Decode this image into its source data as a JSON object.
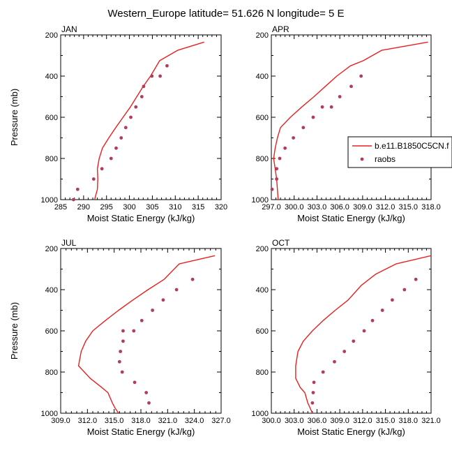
{
  "title": "Western_Europe  latitude= 51.626 N longitude= 5 E",
  "colors": {
    "model_line": "#e8201e",
    "obs_marker": "#b03c60"
  },
  "legend": {
    "placement": "right of APR panel",
    "entries": [
      "b.e11.B1850C5CN.f",
      "raobs"
    ]
  },
  "chart_data": [
    {
      "type": "line",
      "panel": "JAN",
      "xlabel": "Moist Static Energy (kJ/kg)",
      "ylabel": "Pressure (mb)",
      "xlim": [
        285,
        320
      ],
      "ylim": [
        1000,
        200
      ],
      "y_reversed": true,
      "xticks": [
        "285",
        "290",
        "295",
        "300",
        "305",
        "310",
        "315",
        "320"
      ],
      "yticks": [
        "200",
        "400",
        "600",
        "800",
        "1000"
      ],
      "series": [
        {
          "name": "b.e11.B1850C5CN.f",
          "style": "line",
          "x": [
            292.4,
            292.7,
            293.0,
            293.1,
            293.0,
            293.4,
            294.1,
            295.5,
            297.0,
            298.6,
            300.2,
            301.6,
            303.0,
            304.6,
            306.6,
            310.5,
            316.3
          ],
          "y": [
            1000,
            975,
            950,
            900,
            850,
            800,
            750,
            700,
            650,
            600,
            550,
            500,
            450,
            400,
            325,
            275,
            235
          ]
        },
        {
          "name": "raobs",
          "style": "markers",
          "x": [
            287.8,
            288.7,
            292.2,
            294.0,
            296.0,
            297.1,
            298.2,
            299.2,
            300.3,
            301.4,
            302.7,
            303.1,
            304.9,
            306.7,
            308.2
          ],
          "y": [
            1000,
            950,
            900,
            850,
            800,
            750,
            700,
            650,
            600,
            550,
            500,
            450,
            400,
            400,
            350
          ]
        }
      ]
    },
    {
      "type": "line",
      "panel": "APR",
      "xlabel": "Moist Static Energy (kJ/kg)",
      "ylabel": "",
      "xlim": [
        297,
        318
      ],
      "ylim": [
        1000,
        200
      ],
      "y_reversed": true,
      "xticks": [
        "297.0",
        "300.0",
        "303.0",
        "306.0",
        "309.0",
        "312.0",
        "315.0",
        "318.0"
      ],
      "yticks": [
        "200",
        "400",
        "600",
        "800",
        "1000"
      ],
      "series": [
        {
          "name": "b.e11.B1850C5CN.f",
          "style": "line",
          "x": [
            297.9,
            297.8,
            297.7,
            297.5,
            297.3,
            297.5,
            297.8,
            298.2,
            299.5,
            301.0,
            302.6,
            304.1,
            305.6,
            307.4,
            309.1,
            311.5,
            317.6
          ],
          "y": [
            1000,
            950,
            900,
            850,
            800,
            750,
            700,
            650,
            600,
            550,
            500,
            450,
            400,
            350,
            325,
            275,
            235
          ]
        },
        {
          "name": "raobs",
          "style": "markers",
          "x": [
            297.1,
            297.7,
            297.7,
            298.1,
            298.8,
            299.9,
            301.2,
            302.5,
            303.7,
            304.9,
            306.0,
            307.5,
            308.8
          ],
          "y": [
            950,
            900,
            850,
            800,
            750,
            700,
            650,
            600,
            550,
            550,
            500,
            450,
            400
          ]
        }
      ]
    },
    {
      "type": "line",
      "panel": "JUL",
      "xlabel": "Moist Static Energy (kJ/kg)",
      "ylabel": "Pressure (mb)",
      "xlim": [
        309,
        327
      ],
      "ylim": [
        1000,
        200
      ],
      "y_reversed": true,
      "xticks": [
        "309.0",
        "312.0",
        "315.0",
        "318.0",
        "321.0",
        "324.0",
        "327.0"
      ],
      "yticks": [
        "200",
        "400",
        "600",
        "800",
        "1000"
      ],
      "series": [
        {
          "name": "b.e11.B1850C5CN.f",
          "style": "line",
          "x": [
            315.5,
            315.1,
            314.8,
            314.3,
            313.6,
            312.3,
            311.0,
            311.3,
            311.8,
            312.6,
            314.0,
            315.5,
            317.1,
            318.8,
            320.6,
            322.3,
            326.3
          ],
          "y": [
            1000,
            975,
            950,
            900,
            875,
            830,
            770,
            700,
            650,
            600,
            550,
            500,
            450,
            400,
            350,
            275,
            235
          ]
        },
        {
          "name": "raobs",
          "style": "markers",
          "x": [
            318.9,
            318.6,
            317.3,
            315.9,
            315.6,
            315.7,
            316.0,
            316.0,
            317.2,
            318.1,
            319.3,
            320.5,
            322.0,
            323.8
          ],
          "y": [
            950,
            900,
            850,
            800,
            750,
            700,
            650,
            600,
            600,
            550,
            500,
            450,
            400,
            350
          ]
        }
      ]
    },
    {
      "type": "line",
      "panel": "OCT",
      "xlabel": "Moist Static Energy (kJ/kg)",
      "ylabel": "",
      "xlim": [
        300,
        321
      ],
      "ylim": [
        1000,
        200
      ],
      "y_reversed": true,
      "xticks": [
        "300.0",
        "303.0",
        "306.0",
        "309.0",
        "312.0",
        "315.0",
        "318.0",
        "321.0"
      ],
      "yticks": [
        "200",
        "400",
        "600",
        "800",
        "1000"
      ],
      "series": [
        {
          "name": "b.e11.B1850C5CN.f",
          "style": "line",
          "x": [
            305.4,
            305.1,
            304.8,
            304.4,
            303.8,
            303.2,
            303.2,
            303.5,
            304.2,
            305.4,
            306.8,
            308.4,
            310.1,
            311.8,
            313.7,
            316.4,
            321.0
          ],
          "y": [
            1000,
            975,
            950,
            900,
            875,
            830,
            770,
            700,
            650,
            600,
            550,
            500,
            450,
            380,
            325,
            275,
            235
          ]
        },
        {
          "name": "raobs",
          "style": "markers",
          "x": [
            305.4,
            305.5,
            305.6,
            306.8,
            308.3,
            309.6,
            310.8,
            312.2,
            313.3,
            314.6,
            315.9,
            317.5,
            319.0
          ],
          "y": [
            950,
            900,
            850,
            800,
            750,
            700,
            650,
            600,
            550,
            500,
            450,
            400,
            350
          ]
        }
      ]
    }
  ]
}
